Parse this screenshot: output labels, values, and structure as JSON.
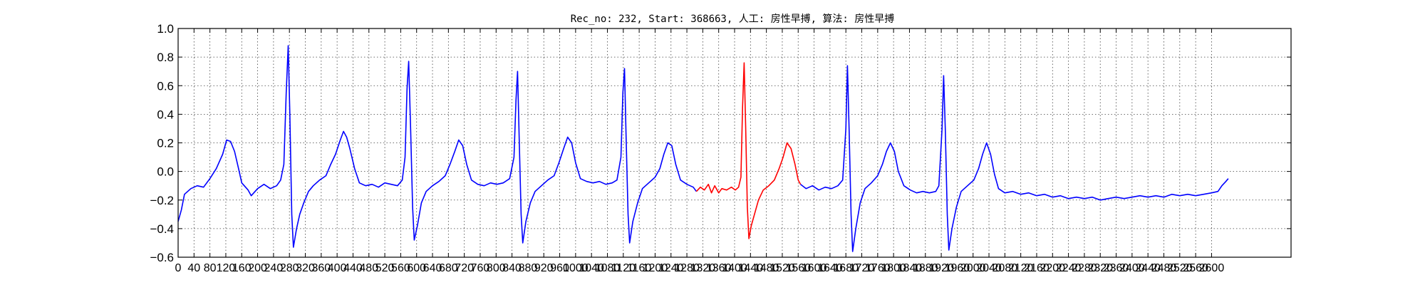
{
  "chart_data": {
    "type": "line",
    "title": "Rec_no: 232, Start: 368663, 人工: 房性早搏, 算法: 房性早搏",
    "xlabel": "",
    "ylabel": "",
    "xlim": [
      0,
      2800
    ],
    "ylim": [
      -0.6,
      1.0
    ],
    "yticks": [
      "−0.6",
      "−0.4",
      "−0.2",
      "0.0",
      "0.2",
      "0.4",
      "0.6",
      "0.8",
      "1.0"
    ],
    "xticks": [
      "0",
      "40",
      "80",
      "120",
      "160",
      "200",
      "240",
      "280",
      "320",
      "360",
      "400",
      "440",
      "480",
      "520",
      "560",
      "600",
      "640",
      "680",
      "720",
      "760",
      "800",
      "840",
      "880",
      "920",
      "960",
      "1000",
      "1040",
      "1080",
      "1120",
      "1160",
      "1200",
      "1240",
      "1280",
      "1320",
      "1360",
      "1400",
      "1440",
      "1480",
      "1520",
      "1560",
      "1600",
      "1640",
      "1680",
      "1720",
      "1760",
      "1800",
      "1840",
      "1880",
      "1920",
      "1960",
      "2000",
      "2040",
      "2080",
      "2120",
      "2160",
      "2200",
      "2240",
      "2280",
      "2320",
      "2360",
      "2400",
      "2440",
      "2480",
      "2520",
      "2560",
      "2600"
    ],
    "grid": true,
    "series": [
      {
        "color": "#0000ff",
        "points": [
          [
            0,
            -0.35
          ],
          [
            8,
            -0.27
          ],
          [
            16,
            -0.16
          ],
          [
            32,
            -0.12
          ],
          [
            48,
            -0.1
          ],
          [
            64,
            -0.11
          ],
          [
            80,
            -0.05
          ],
          [
            96,
            0.02
          ],
          [
            112,
            0.12
          ],
          [
            122,
            0.22
          ],
          [
            132,
            0.21
          ],
          [
            142,
            0.14
          ],
          [
            152,
            0.02
          ],
          [
            160,
            -0.08
          ],
          [
            176,
            -0.13
          ],
          [
            184,
            -0.17
          ],
          [
            200,
            -0.12
          ],
          [
            216,
            -0.09
          ],
          [
            232,
            -0.12
          ],
          [
            248,
            -0.1
          ],
          [
            258,
            -0.06
          ],
          [
            266,
            0.05
          ],
          [
            272,
            0.55
          ],
          [
            277,
            0.88
          ],
          [
            281,
            0.4
          ],
          [
            286,
            -0.3
          ],
          [
            290,
            -0.53
          ],
          [
            298,
            -0.4
          ],
          [
            306,
            -0.3
          ],
          [
            316,
            -0.22
          ],
          [
            328,
            -0.14
          ],
          [
            340,
            -0.1
          ],
          [
            356,
            -0.06
          ],
          [
            372,
            -0.03
          ],
          [
            384,
            0.05
          ],
          [
            396,
            0.12
          ],
          [
            408,
            0.22
          ],
          [
            416,
            0.28
          ],
          [
            424,
            0.24
          ],
          [
            432,
            0.16
          ],
          [
            444,
            0.02
          ],
          [
            456,
            -0.08
          ],
          [
            472,
            -0.1
          ],
          [
            488,
            -0.09
          ],
          [
            504,
            -0.11
          ],
          [
            520,
            -0.08
          ],
          [
            536,
            -0.09
          ],
          [
            552,
            -0.1
          ],
          [
            564,
            -0.06
          ],
          [
            571,
            0.1
          ],
          [
            576,
            0.58
          ],
          [
            580,
            0.77
          ],
          [
            585,
            0.3
          ],
          [
            590,
            -0.25
          ],
          [
            594,
            -0.48
          ],
          [
            602,
            -0.38
          ],
          [
            612,
            -0.22
          ],
          [
            624,
            -0.14
          ],
          [
            640,
            -0.1
          ],
          [
            656,
            -0.07
          ],
          [
            672,
            -0.03
          ],
          [
            684,
            0.05
          ],
          [
            696,
            0.14
          ],
          [
            706,
            0.22
          ],
          [
            716,
            0.18
          ],
          [
            726,
            0.05
          ],
          [
            738,
            -0.06
          ],
          [
            754,
            -0.09
          ],
          [
            770,
            -0.1
          ],
          [
            786,
            -0.08
          ],
          [
            802,
            -0.09
          ],
          [
            818,
            -0.08
          ],
          [
            834,
            -0.05
          ],
          [
            845,
            0.1
          ],
          [
            850,
            0.5
          ],
          [
            854,
            0.7
          ],
          [
            858,
            0.25
          ],
          [
            863,
            -0.3
          ],
          [
            867,
            -0.5
          ],
          [
            875,
            -0.35
          ],
          [
            886,
            -0.22
          ],
          [
            898,
            -0.14
          ],
          [
            914,
            -0.1
          ],
          [
            930,
            -0.06
          ],
          [
            946,
            -0.03
          ],
          [
            958,
            0.06
          ],
          [
            970,
            0.16
          ],
          [
            980,
            0.24
          ],
          [
            990,
            0.2
          ],
          [
            1000,
            0.06
          ],
          [
            1012,
            -0.05
          ],
          [
            1028,
            -0.07
          ],
          [
            1044,
            -0.08
          ],
          [
            1060,
            -0.07
          ],
          [
            1076,
            -0.09
          ],
          [
            1092,
            -0.08
          ],
          [
            1104,
            -0.06
          ],
          [
            1114,
            0.1
          ],
          [
            1119,
            0.55
          ],
          [
            1123,
            0.72
          ],
          [
            1127,
            0.25
          ],
          [
            1132,
            -0.3
          ],
          [
            1136,
            -0.5
          ],
          [
            1144,
            -0.35
          ],
          [
            1156,
            -0.22
          ],
          [
            1168,
            -0.12
          ],
          [
            1184,
            -0.08
          ],
          [
            1200,
            -0.04
          ],
          [
            1212,
            0.02
          ],
          [
            1222,
            0.12
          ],
          [
            1232,
            0.2
          ],
          [
            1242,
            0.18
          ],
          [
            1252,
            0.05
          ],
          [
            1264,
            -0.06
          ],
          [
            1280,
            -0.09
          ],
          [
            1296,
            -0.11
          ],
          [
            1304,
            -0.14
          ]
        ]
      },
      {
        "color": "#ff0000",
        "points": [
          [
            1304,
            -0.14
          ],
          [
            1314,
            -0.11
          ],
          [
            1324,
            -0.13
          ],
          [
            1334,
            -0.09
          ],
          [
            1342,
            -0.15
          ],
          [
            1350,
            -0.1
          ],
          [
            1360,
            -0.15
          ],
          [
            1368,
            -0.12
          ],
          [
            1380,
            -0.13
          ],
          [
            1392,
            -0.11
          ],
          [
            1402,
            -0.13
          ],
          [
            1410,
            -0.11
          ],
          [
            1416,
            -0.04
          ],
          [
            1420,
            0.45
          ],
          [
            1424,
            0.76
          ],
          [
            1428,
            0.3
          ],
          [
            1432,
            -0.25
          ],
          [
            1436,
            -0.47
          ],
          [
            1442,
            -0.38
          ],
          [
            1450,
            -0.3
          ],
          [
            1460,
            -0.2
          ],
          [
            1472,
            -0.13
          ],
          [
            1486,
            -0.1
          ],
          [
            1500,
            -0.06
          ],
          [
            1512,
            0.02
          ],
          [
            1522,
            0.1
          ],
          [
            1532,
            0.2
          ],
          [
            1542,
            0.16
          ],
          [
            1552,
            0.05
          ],
          [
            1560,
            -0.06
          ],
          [
            1566,
            -0.09
          ]
        ]
      },
      {
        "color": "#0000ff",
        "points": [
          [
            1566,
            -0.09
          ],
          [
            1580,
            -0.12
          ],
          [
            1596,
            -0.1
          ],
          [
            1612,
            -0.13
          ],
          [
            1628,
            -0.11
          ],
          [
            1644,
            -0.12
          ],
          [
            1660,
            -0.1
          ],
          [
            1672,
            -0.06
          ],
          [
            1680,
            0.3
          ],
          [
            1684,
            0.74
          ],
          [
            1688,
            0.3
          ],
          [
            1693,
            -0.3
          ],
          [
            1697,
            -0.56
          ],
          [
            1705,
            -0.4
          ],
          [
            1716,
            -0.22
          ],
          [
            1728,
            -0.12
          ],
          [
            1744,
            -0.08
          ],
          [
            1760,
            -0.03
          ],
          [
            1772,
            0.05
          ],
          [
            1782,
            0.14
          ],
          [
            1792,
            0.2
          ],
          [
            1802,
            0.14
          ],
          [
            1812,
            0.0
          ],
          [
            1826,
            -0.1
          ],
          [
            1842,
            -0.13
          ],
          [
            1858,
            -0.15
          ],
          [
            1874,
            -0.14
          ],
          [
            1890,
            -0.15
          ],
          [
            1906,
            -0.14
          ],
          [
            1914,
            -0.1
          ],
          [
            1922,
            0.3
          ],
          [
            1926,
            0.67
          ],
          [
            1930,
            0.3
          ],
          [
            1935,
            -0.3
          ],
          [
            1939,
            -0.55
          ],
          [
            1947,
            -0.4
          ],
          [
            1958,
            -0.25
          ],
          [
            1970,
            -0.14
          ],
          [
            1986,
            -0.1
          ],
          [
            2002,
            -0.06
          ],
          [
            2014,
            0.02
          ],
          [
            2024,
            0.12
          ],
          [
            2034,
            0.2
          ],
          [
            2044,
            0.12
          ],
          [
            2054,
            -0.02
          ],
          [
            2064,
            -0.12
          ],
          [
            2080,
            -0.15
          ],
          [
            2100,
            -0.14
          ],
          [
            2120,
            -0.16
          ],
          [
            2140,
            -0.15
          ],
          [
            2160,
            -0.17
          ],
          [
            2180,
            -0.16
          ],
          [
            2200,
            -0.18
          ],
          [
            2220,
            -0.17
          ],
          [
            2240,
            -0.19
          ],
          [
            2260,
            -0.18
          ],
          [
            2280,
            -0.19
          ],
          [
            2300,
            -0.18
          ],
          [
            2320,
            -0.2
          ],
          [
            2340,
            -0.19
          ],
          [
            2360,
            -0.18
          ],
          [
            2380,
            -0.19
          ],
          [
            2400,
            -0.18
          ],
          [
            2420,
            -0.17
          ],
          [
            2440,
            -0.18
          ],
          [
            2460,
            -0.17
          ],
          [
            2480,
            -0.18
          ],
          [
            2500,
            -0.16
          ],
          [
            2520,
            -0.17
          ],
          [
            2540,
            -0.16
          ],
          [
            2560,
            -0.17
          ],
          [
            2580,
            -0.16
          ],
          [
            2600,
            -0.15
          ],
          [
            2616,
            -0.14
          ],
          [
            2626,
            -0.1
          ],
          [
            2636,
            -0.07
          ],
          [
            2642,
            -0.05
          ]
        ]
      }
    ]
  }
}
